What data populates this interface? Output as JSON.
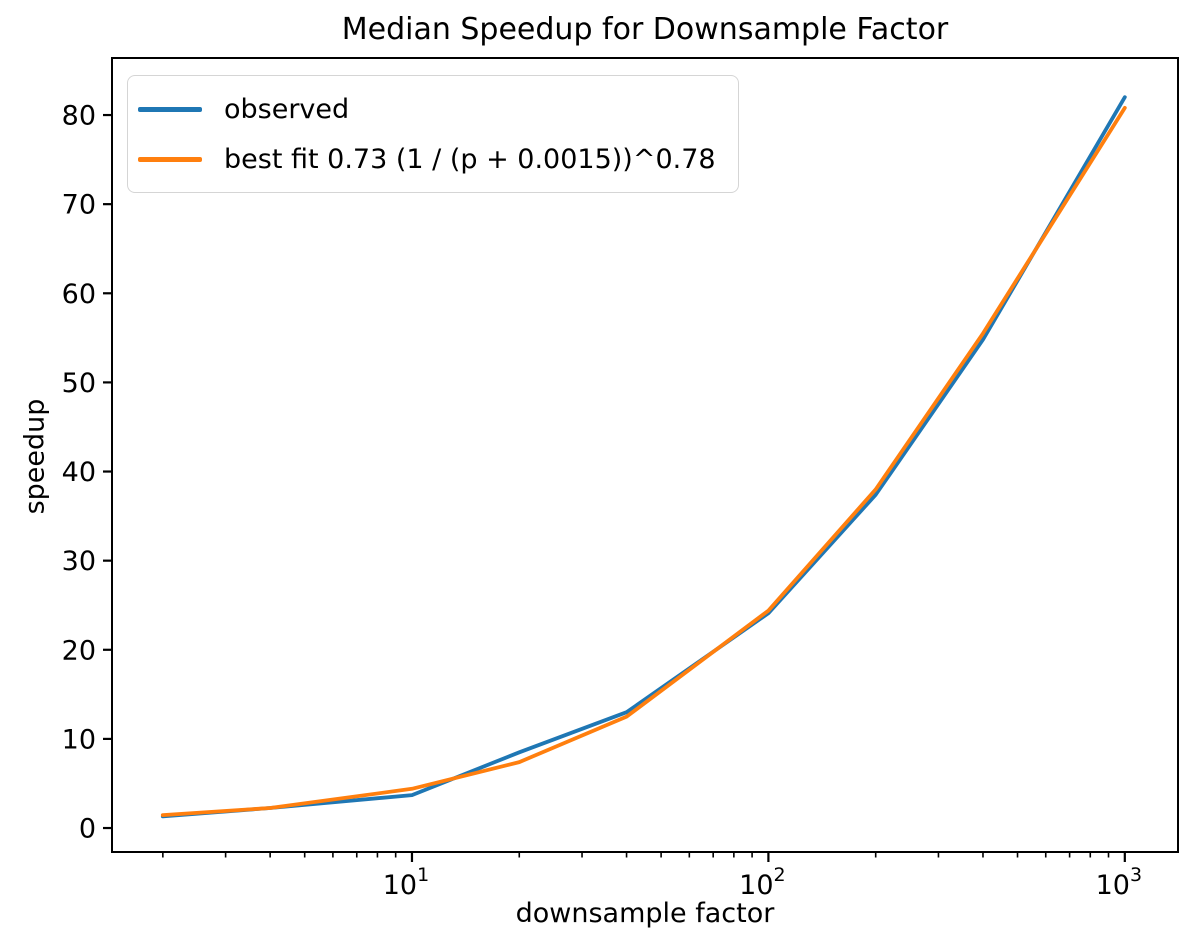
{
  "figure_title": "Median Speedup for Downsample Factor",
  "chart_data": {
    "type": "line",
    "title": "Median Speedup for Downsample Factor",
    "xlabel": "downsample factor",
    "ylabel": "speedup",
    "x_scale": "log",
    "grid": false,
    "legend_position": "upper left",
    "axes": {
      "xlim": [
        1.44,
        1410
      ],
      "ylim": [
        -2.69,
        86.4
      ]
    },
    "x_major_ticks": [
      {
        "value": 10,
        "base": "10",
        "exp": "1"
      },
      {
        "value": 100,
        "base": "10",
        "exp": "2"
      },
      {
        "value": 1000,
        "base": "10",
        "exp": "3"
      }
    ],
    "y_ticks": [
      0,
      10,
      20,
      30,
      40,
      50,
      60,
      70,
      80
    ],
    "x": [
      2,
      4,
      10,
      20,
      40,
      100,
      200,
      400,
      1000
    ],
    "series": [
      {
        "name": "observed",
        "color": "#1f77b4",
        "values": [
          1.3,
          2.25,
          3.7,
          8.5,
          13.0,
          24.1,
          37.4,
          54.8,
          82.0
        ]
      },
      {
        "name": "best fit 0.73 (1 / (p + 0.0015))^0.78",
        "color": "#ff7f0e",
        "values": [
          1.45,
          2.25,
          4.4,
          7.4,
          12.5,
          24.4,
          38.0,
          55.5,
          80.8
        ]
      }
    ]
  }
}
